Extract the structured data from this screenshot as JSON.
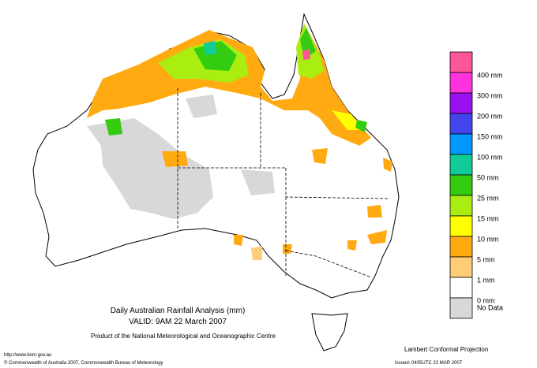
{
  "map": {
    "title": "Daily Australian Rainfall Analysis (mm)",
    "valid": "VALID: 9AM 22 March 2007",
    "product": "Product of the National Meteorological and Oceanographic Centre",
    "url": "http://www.bom.gov.au",
    "copyright": "© Commonwealth of Australia 2007, Commonwealth Bureau of Meteorology",
    "projection": "Lambert Conformal Projection",
    "issued": "Issued: 0405UTC 22 MAR 2007"
  },
  "legend": {
    "colors": [
      "#ff5599",
      "#ff33dd",
      "#9911ee",
      "#4444ee",
      "#0099ff",
      "#11cc99",
      "#33cc11",
      "#aaee11",
      "#ffff00",
      "#ffaa11",
      "#ffcc77",
      "#ffffff",
      "#d8d8d8"
    ],
    "labels": [
      "400 mm",
      "300 mm",
      "200 mm",
      "150 mm",
      "100 mm",
      "50 mm",
      "25 mm",
      "15 mm",
      "10 mm",
      "5 mm",
      "1 mm",
      "0 mm",
      "No Data"
    ]
  }
}
